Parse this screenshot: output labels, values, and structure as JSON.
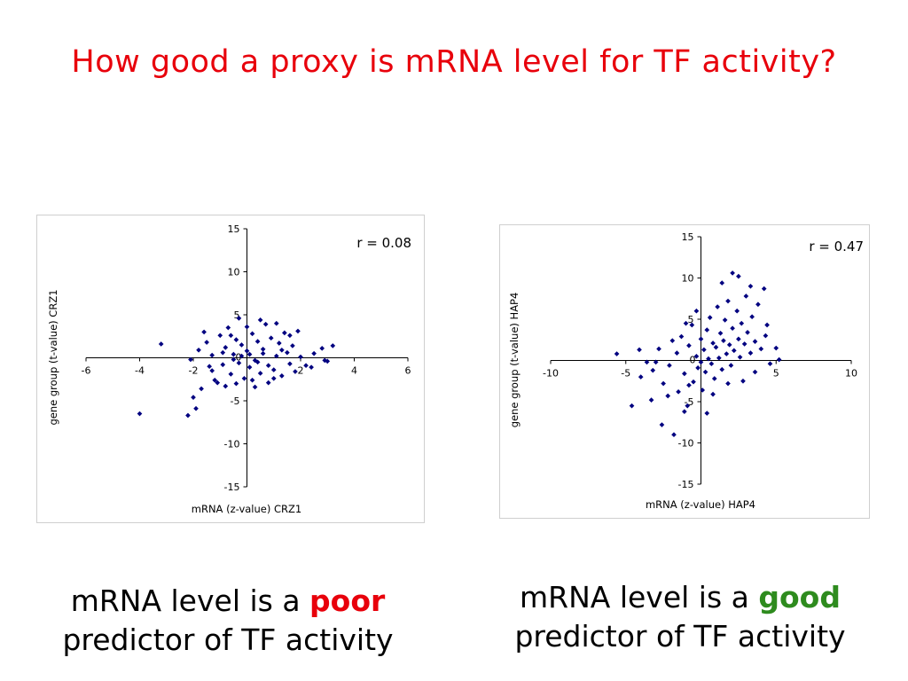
{
  "slide": {
    "title": "How good a proxy is mRNA level for TF activity?",
    "colors": {
      "title": "#e8000b",
      "points": "#000080",
      "poor": "#e8000b",
      "good": "#2e8b1e"
    }
  },
  "captions": [
    {
      "pre": "mRNA level is a ",
      "keyword": "poor",
      "post": "predictor of TF activity"
    },
    {
      "pre": "mRNA level is a ",
      "keyword": "good",
      "post": "predictor of TF activity"
    }
  ],
  "chart_data": [
    {
      "type": "scatter",
      "xlabel": "mRNA (z-value) CRZ1",
      "ylabel": "gene group (t-value) CRZ1",
      "annotation": "r = 0.08",
      "xlim": [
        -6,
        6
      ],
      "ylim": [
        -15,
        15
      ],
      "xticks": [
        -6,
        -4,
        -2,
        2,
        4,
        6
      ],
      "yticks": [
        15,
        10,
        5,
        -5,
        -10,
        -15
      ],
      "origin_label": "0",
      "grid": false,
      "legend": "none",
      "points": [
        [
          -4.0,
          -6.5
        ],
        [
          -3.2,
          1.6
        ],
        [
          -2.2,
          -6.7
        ],
        [
          -1.9,
          -5.9
        ],
        [
          -2.0,
          -4.6
        ],
        [
          -1.7,
          -3.6
        ],
        [
          -2.1,
          -0.2
        ],
        [
          -1.8,
          0.9
        ],
        [
          -1.5,
          1.8
        ],
        [
          -1.3,
          -1.5
        ],
        [
          -1.6,
          3.0
        ],
        [
          -1.2,
          -2.6
        ],
        [
          -1.0,
          2.6
        ],
        [
          -0.9,
          -0.8
        ],
        [
          -0.8,
          1.2
        ],
        [
          -0.7,
          3.5
        ],
        [
          -0.6,
          -1.9
        ],
        [
          -0.5,
          0.4
        ],
        [
          -0.4,
          2.1
        ],
        [
          -0.3,
          -0.6
        ],
        [
          -0.2,
          1.5
        ],
        [
          -0.1,
          -2.4
        ],
        [
          0.0,
          0.8
        ],
        [
          0.1,
          -1.1
        ],
        [
          0.2,
          2.8
        ],
        [
          0.3,
          -0.3
        ],
        [
          0.4,
          1.9
        ],
        [
          0.5,
          -1.8
        ],
        [
          0.6,
          0.5
        ],
        [
          0.7,
          3.9
        ],
        [
          0.8,
          -0.9
        ],
        [
          0.9,
          2.3
        ],
        [
          1.0,
          -1.4
        ],
        [
          1.1,
          0.2
        ],
        [
          1.2,
          1.7
        ],
        [
          1.3,
          -2.1
        ],
        [
          1.4,
          2.9
        ],
        [
          1.5,
          0.6
        ],
        [
          1.6,
          -0.7
        ],
        [
          1.7,
          1.4
        ],
        [
          1.8,
          -1.6
        ],
        [
          1.9,
          3.1
        ],
        [
          2.0,
          0.1
        ],
        [
          2.2,
          -0.9
        ],
        [
          2.5,
          0.5
        ],
        [
          2.8,
          1.1
        ],
        [
          3.2,
          1.4
        ],
        [
          2.9,
          -0.3
        ],
        [
          -0.4,
          -3.0
        ],
        [
          0.3,
          -3.4
        ],
        [
          0.8,
          -2.9
        ],
        [
          -1.1,
          -2.9
        ],
        [
          -0.3,
          4.6
        ],
        [
          0.5,
          4.4
        ],
        [
          1.1,
          4.0
        ],
        [
          -0.8,
          -3.3
        ],
        [
          2.4,
          -1.1
        ],
        [
          3.0,
          -0.4
        ],
        [
          -1.4,
          -1.0
        ],
        [
          0.0,
          3.6
        ],
        [
          1.6,
          2.6
        ],
        [
          -0.6,
          2.6
        ],
        [
          0.2,
          -2.6
        ],
        [
          1.0,
          -2.4
        ],
        [
          -0.2,
          0.2
        ],
        [
          0.1,
          0.4
        ],
        [
          0.4,
          -0.5
        ],
        [
          -0.5,
          -0.2
        ],
        [
          0.6,
          1.0
        ],
        [
          -0.9,
          0.6
        ],
        [
          1.3,
          0.9
        ],
        [
          -1.3,
          0.3
        ]
      ]
    },
    {
      "type": "scatter",
      "xlabel": "mRNA (z-value) HAP4",
      "ylabel": "gene group (t-value) HAP4",
      "annotation": "r = 0.47",
      "xlim": [
        -10,
        10
      ],
      "ylim": [
        -15,
        15
      ],
      "xticks": [
        -10,
        -5,
        5,
        10
      ],
      "yticks": [
        15,
        10,
        5,
        -5,
        -10,
        -15
      ],
      "origin_label": "0",
      "grid": false,
      "legend": "none",
      "points": [
        [
          -4.6,
          -5.5
        ],
        [
          -3.6,
          -0.2
        ],
        [
          -3.3,
          -4.8
        ],
        [
          -2.8,
          1.4
        ],
        [
          -2.5,
          -2.8
        ],
        [
          -2.6,
          -7.8
        ],
        [
          -2.1,
          -0.6
        ],
        [
          -1.8,
          -9.0
        ],
        [
          -1.5,
          -3.8
        ],
        [
          -1.6,
          0.9
        ],
        [
          -1.3,
          2.9
        ],
        [
          -1.1,
          -1.6
        ],
        [
          -0.9,
          -5.5
        ],
        [
          -0.8,
          1.8
        ],
        [
          -0.6,
          4.3
        ],
        [
          -0.5,
          -2.6
        ],
        [
          -0.3,
          0.5
        ],
        [
          -0.2,
          -0.9
        ],
        [
          0.0,
          2.6
        ],
        [
          0.1,
          -3.6
        ],
        [
          0.2,
          1.3
        ],
        [
          0.3,
          -1.4
        ],
        [
          0.4,
          3.7
        ],
        [
          0.5,
          0.2
        ],
        [
          0.6,
          5.2
        ],
        [
          0.7,
          -0.4
        ],
        [
          0.8,
          2.1
        ],
        [
          0.9,
          -2.2
        ],
        [
          1.0,
          1.6
        ],
        [
          1.1,
          6.5
        ],
        [
          1.2,
          0.3
        ],
        [
          1.3,
          3.3
        ],
        [
          1.4,
          -1.1
        ],
        [
          1.5,
          2.4
        ],
        [
          1.6,
          4.9
        ],
        [
          1.7,
          0.8
        ],
        [
          1.8,
          7.2
        ],
        [
          1.9,
          1.9
        ],
        [
          2.0,
          -0.6
        ],
        [
          2.1,
          3.9
        ],
        [
          2.2,
          1.2
        ],
        [
          2.4,
          6.0
        ],
        [
          2.5,
          2.6
        ],
        [
          2.6,
          0.4
        ],
        [
          2.7,
          4.5
        ],
        [
          2.9,
          2.0
        ],
        [
          3.0,
          7.8
        ],
        [
          3.1,
          3.4
        ],
        [
          3.3,
          0.9
        ],
        [
          3.4,
          5.3
        ],
        [
          3.6,
          2.3
        ],
        [
          3.8,
          6.8
        ],
        [
          4.0,
          1.4
        ],
        [
          4.3,
          3.0
        ],
        [
          4.6,
          -0.4
        ],
        [
          5.0,
          1.5
        ],
        [
          5.2,
          0.1
        ],
        [
          -5.6,
          0.8
        ],
        [
          -4.1,
          1.3
        ],
        [
          -3.0,
          -0.2
        ],
        [
          2.1,
          10.6
        ],
        [
          2.5,
          10.2
        ],
        [
          3.3,
          9.0
        ],
        [
          4.2,
          8.7
        ],
        [
          1.4,
          9.4
        ],
        [
          -1.0,
          4.5
        ],
        [
          -0.3,
          6.0
        ],
        [
          0.4,
          -6.4
        ],
        [
          -1.1,
          -6.2
        ],
        [
          -2.2,
          -4.3
        ],
        [
          0.8,
          -4.1
        ],
        [
          1.8,
          -2.8
        ],
        [
          -0.8,
          -3.0
        ],
        [
          -1.9,
          2.4
        ],
        [
          3.6,
          -1.4
        ],
        [
          4.4,
          4.3
        ],
        [
          2.8,
          -2.5
        ],
        [
          -4.0,
          -2.0
        ],
        [
          -3.2,
          -1.2
        ],
        [
          0.0,
          -0.2
        ]
      ]
    }
  ]
}
